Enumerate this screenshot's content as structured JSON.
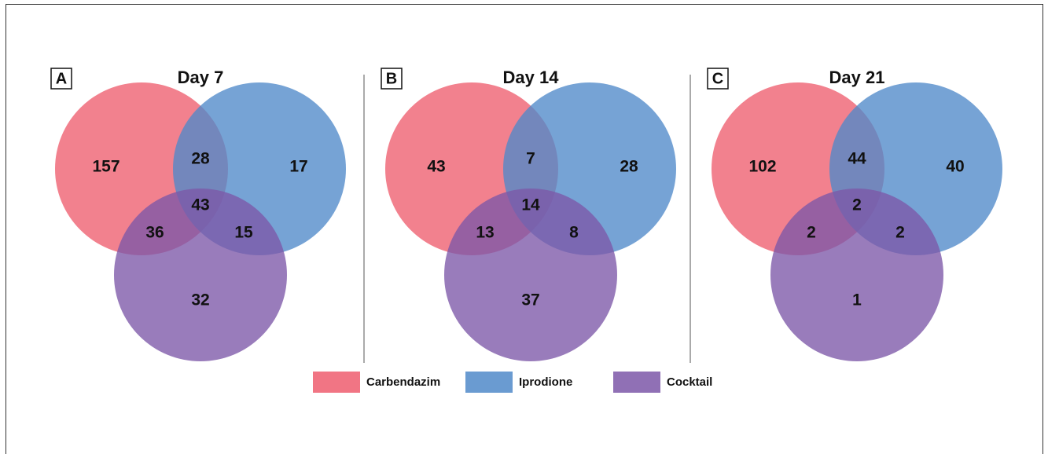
{
  "legend": [
    {
      "name": "Carbendazim",
      "color": "#ee5d6e"
    },
    {
      "name": "Iprodione",
      "color": "#5089c9"
    },
    {
      "name": "Cocktail",
      "color": "#7c57a8"
    }
  ],
  "panels": [
    {
      "label": "A",
      "title": "Day 7",
      "regions": [
        157,
        28,
        17,
        43,
        36,
        15,
        32
      ]
    },
    {
      "label": "B",
      "title": "Day 14",
      "regions": [
        43,
        7,
        28,
        14,
        13,
        8,
        37
      ]
    },
    {
      "label": "C",
      "title": "Day 21",
      "regions": [
        102,
        44,
        40,
        2,
        2,
        2,
        1
      ]
    }
  ]
}
